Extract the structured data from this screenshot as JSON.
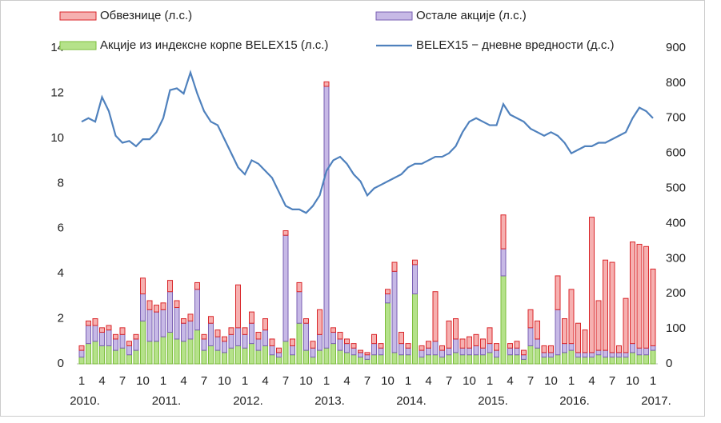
{
  "chart_data": {
    "type": "bar",
    "categories": [
      "1",
      null,
      null,
      "4",
      null,
      null,
      "7",
      null,
      null,
      "10",
      null,
      null,
      "1",
      null,
      null,
      "4",
      null,
      null,
      "7",
      null,
      null,
      "10",
      null,
      null,
      "1",
      null,
      null,
      "4",
      null,
      null,
      "7",
      null,
      null,
      "10",
      null,
      null,
      "1",
      null,
      null,
      "4",
      null,
      null,
      "7",
      null,
      null,
      "10",
      null,
      null,
      "1",
      null,
      null,
      "4",
      null,
      null,
      "7",
      null,
      null,
      "10",
      null,
      null,
      "1",
      null,
      null,
      "4",
      null,
      null,
      "7",
      null,
      null,
      "10",
      null,
      null,
      "1",
      null,
      null,
      "4",
      null,
      null,
      "7",
      null,
      null,
      "10",
      null,
      null,
      "1"
    ],
    "year_labels": [
      "2010.",
      "2011.",
      "2012.",
      "2013.",
      "2014.",
      "2015.",
      "2016.",
      "2017."
    ],
    "series": [
      {
        "name": "Акције из индексне корпе BELEX15 (л.с.)",
        "color": "#b5e28a",
        "stroke": "#7cbd3c",
        "values": [
          0.3,
          0.9,
          1.0,
          0.8,
          0.8,
          0.6,
          0.7,
          0.4,
          0.6,
          1.9,
          1.0,
          1.0,
          1.2,
          1.4,
          1.1,
          1.0,
          1.1,
          1.5,
          0.6,
          0.8,
          0.6,
          0.5,
          0.7,
          0.8,
          0.7,
          0.9,
          0.6,
          0.8,
          0.4,
          0.3,
          1.0,
          0.4,
          1.8,
          0.6,
          0.3,
          0.6,
          0.7,
          0.9,
          0.6,
          0.5,
          0.4,
          0.3,
          0.2,
          0.4,
          0.4,
          2.7,
          0.5,
          0.4,
          0.4,
          3.1,
          0.3,
          0.4,
          0.4,
          0.3,
          0.4,
          0.5,
          0.4,
          0.4,
          0.4,
          0.4,
          0.5,
          0.3,
          3.9,
          0.4,
          0.4,
          0.2,
          0.8,
          0.7,
          0.3,
          0.3,
          0.4,
          0.5,
          0.6,
          0.3,
          0.3,
          0.3,
          0.4,
          0.3,
          0.3,
          0.3,
          0.3,
          0.5,
          0.4,
          0.4,
          0.6
        ]
      },
      {
        "name": "Остале акције (л.с.)",
        "color": "#c7b9e6",
        "stroke": "#7a5fb3",
        "values": [
          0.3,
          0.8,
          0.7,
          0.6,
          0.7,
          0.5,
          0.6,
          0.4,
          0.5,
          1.2,
          1.4,
          1.3,
          1.2,
          1.8,
          1.4,
          0.8,
          0.8,
          1.8,
          0.5,
          1.0,
          0.6,
          0.5,
          0.6,
          0.8,
          0.6,
          0.9,
          0.5,
          0.7,
          0.4,
          0.2,
          4.7,
          0.4,
          1.4,
          1.2,
          0.4,
          0.7,
          11.6,
          0.5,
          0.5,
          0.4,
          0.3,
          0.2,
          0.2,
          0.5,
          0.3,
          0.4,
          3.6,
          0.5,
          0.3,
          1.3,
          0.3,
          0.3,
          0.6,
          0.3,
          0.3,
          0.6,
          0.3,
          0.3,
          0.4,
          0.3,
          0.4,
          0.3,
          1.2,
          0.3,
          0.3,
          0.2,
          0.8,
          0.4,
          0.2,
          0.2,
          2.0,
          0.4,
          0.3,
          0.2,
          0.2,
          0.2,
          0.2,
          0.3,
          0.2,
          0.2,
          0.2,
          0.4,
          0.3,
          0.3,
          0.2
        ]
      },
      {
        "name": "Обвезнице (л.с.)",
        "color": "#f6b0b0",
        "stroke": "#d9262a",
        "values": [
          0.2,
          0.2,
          0.3,
          0.2,
          0.2,
          0.2,
          0.3,
          0.2,
          0.2,
          0.7,
          0.4,
          0.3,
          0.3,
          0.5,
          0.3,
          0.2,
          0.3,
          0.3,
          0.2,
          0.3,
          0.3,
          0.2,
          0.3,
          1.9,
          0.3,
          0.5,
          0.3,
          0.5,
          0.3,
          0.2,
          0.2,
          0.3,
          0.4,
          0.2,
          0.3,
          1.1,
          0.2,
          0.2,
          0.3,
          0.2,
          0.2,
          0.1,
          0.1,
          0.4,
          0.2,
          0.2,
          0.4,
          0.5,
          0.2,
          0.2,
          0.2,
          0.3,
          2.2,
          0.2,
          1.2,
          0.9,
          0.4,
          0.5,
          0.5,
          0.4,
          0.7,
          0.3,
          1.5,
          0.2,
          0.3,
          0.2,
          0.8,
          0.8,
          0.3,
          0.3,
          1.5,
          1.1,
          2.4,
          1.3,
          1.0,
          6.0,
          2.2,
          4.0,
          4.0,
          0.3,
          2.4,
          4.5,
          4.6,
          4.5,
          3.4
        ]
      },
      {
        "name": "BELEX15 − дневне вредности (д.с.)",
        "type": "line",
        "axis": "y2",
        "color": "#4f81bd",
        "values": [
          690,
          700,
          690,
          760,
          720,
          650,
          630,
          635,
          620,
          640,
          640,
          660,
          700,
          780,
          785,
          770,
          830,
          770,
          720,
          690,
          680,
          640,
          600,
          560,
          540,
          580,
          570,
          550,
          530,
          490,
          450,
          440,
          440,
          430,
          450,
          480,
          550,
          580,
          590,
          570,
          540,
          520,
          480,
          500,
          510,
          520,
          530,
          540,
          560,
          570,
          570,
          580,
          590,
          590,
          600,
          620,
          660,
          690,
          700,
          690,
          680,
          680,
          740,
          710,
          700,
          690,
          670,
          660,
          650,
          660,
          650,
          630,
          600,
          610,
          620,
          620,
          630,
          630,
          640,
          650,
          660,
          700,
          730,
          720,
          700
        ]
      }
    ],
    "ylim": [
      0,
      14
    ],
    "yticks": [
      0,
      2,
      4,
      6,
      8,
      10,
      12,
      14
    ],
    "y2lim": [
      0,
      900
    ],
    "y2ticks": [
      0,
      100,
      200,
      300,
      400,
      500,
      600,
      700,
      800,
      900
    ],
    "legend": "top"
  }
}
